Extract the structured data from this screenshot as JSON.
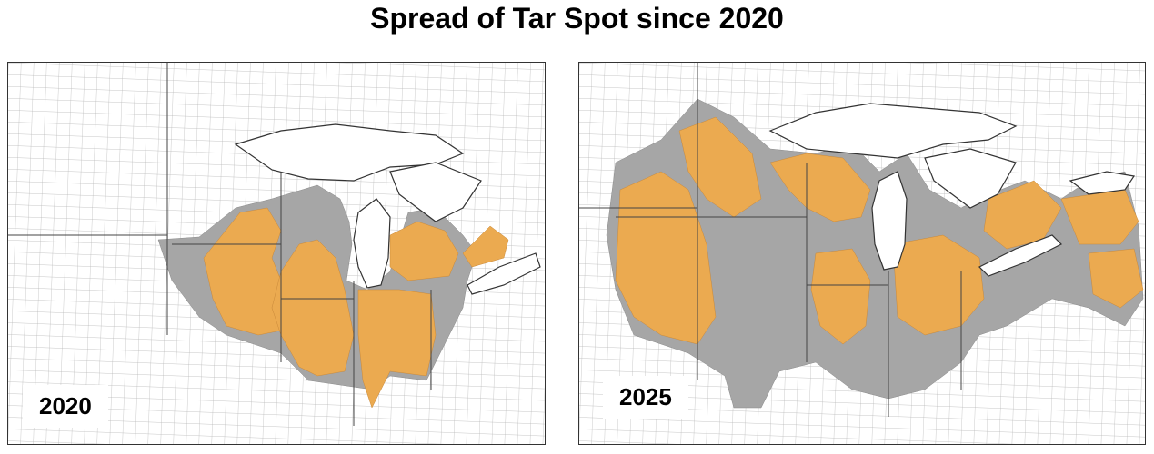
{
  "title": "Spread of Tar Spot since 2020",
  "colors": {
    "confirmed_orange": "#EBAA50",
    "gray": "#A6A6A6",
    "water": "#ffffff",
    "county_line": "#9a9a9a",
    "state_line": "#444444"
  },
  "maps": [
    {
      "year_label": "2020"
    },
    {
      "year_label": "2025"
    }
  ]
}
